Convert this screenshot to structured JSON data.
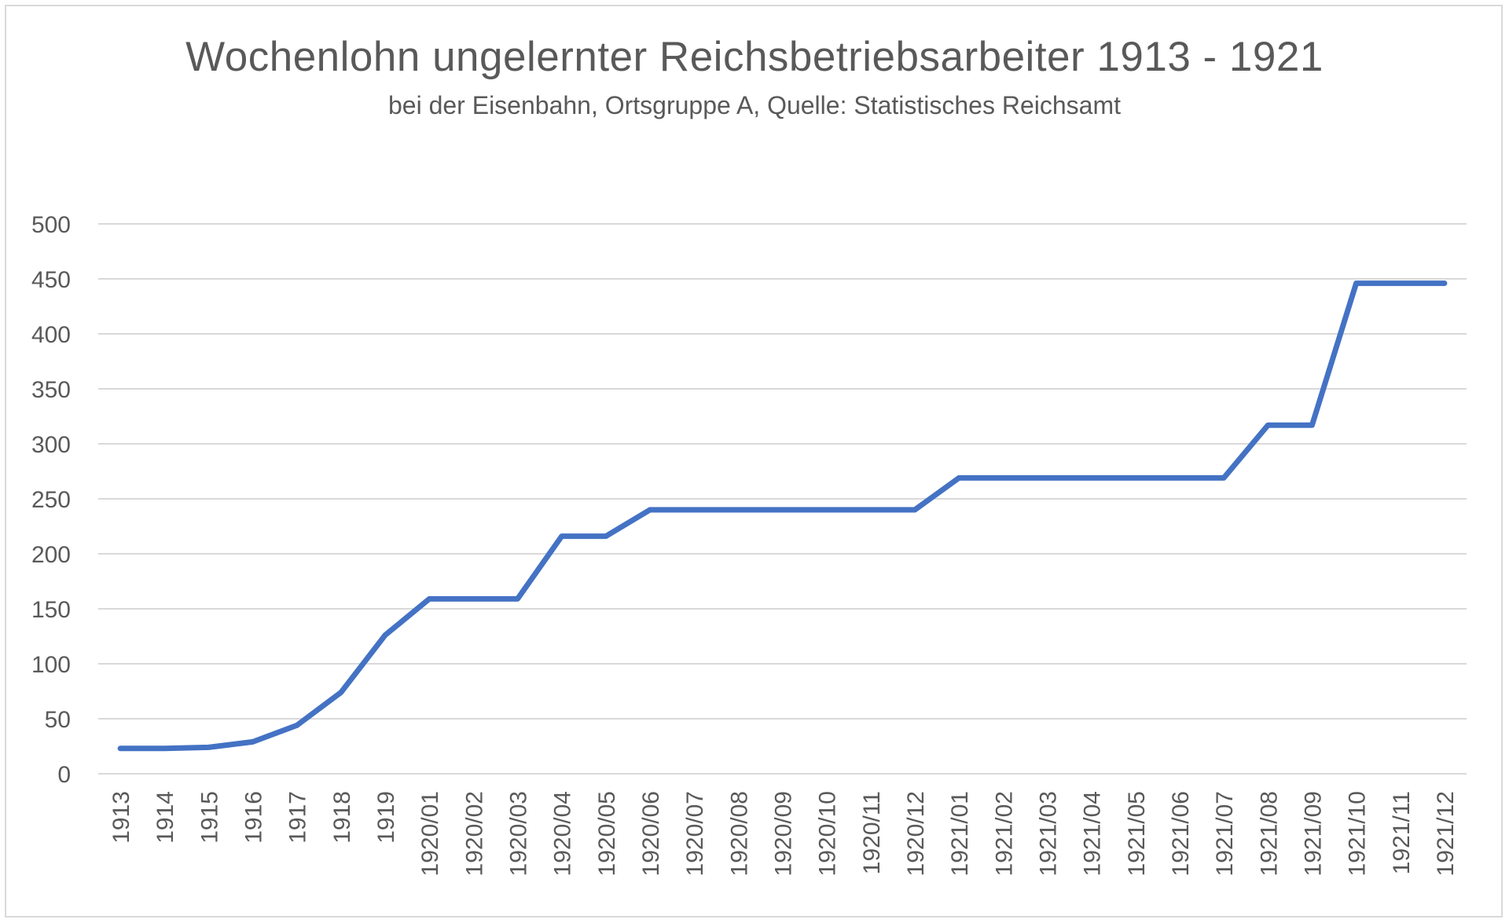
{
  "chart_data": {
    "type": "line",
    "title": "Wochenlohn ungelernter Reichsbetriebsarbeiter 1913 - 1921",
    "subtitle": "bei der Eisenbahn, Ortsgruppe A, Quelle: Statistisches Reichsamt",
    "xlabel": "",
    "ylabel": "",
    "ylim": [
      0,
      500
    ],
    "yticks": [
      "0",
      "50",
      "100",
      "150",
      "200",
      "250",
      "300",
      "350",
      "400",
      "450",
      "500"
    ],
    "grid": true,
    "legend": "none",
    "line_color": "#4472c4",
    "categories": [
      "1913",
      "1914",
      "1915",
      "1916",
      "1917",
      "1918",
      "1919",
      "1920/01",
      "1920/02",
      "1920/03",
      "1920/04",
      "1920/05",
      "1920/06",
      "1920/07",
      "1920/08",
      "1920/09",
      "1920/10",
      "1920/11",
      "1920/12",
      "1921/01",
      "1921/02",
      "1921/03",
      "1921/04",
      "1921/05",
      "1921/06",
      "1921/07",
      "1921/08",
      "1921/09",
      "1921/10",
      "1921/11",
      "1921/12"
    ],
    "series": [
      {
        "values": [
          23,
          23,
          24,
          29,
          44,
          74,
          126,
          159,
          159,
          159,
          216,
          216,
          240,
          240,
          240,
          240,
          240,
          240,
          240,
          269,
          269,
          269,
          269,
          269,
          269,
          269,
          317,
          317,
          446,
          446,
          446
        ]
      }
    ]
  }
}
